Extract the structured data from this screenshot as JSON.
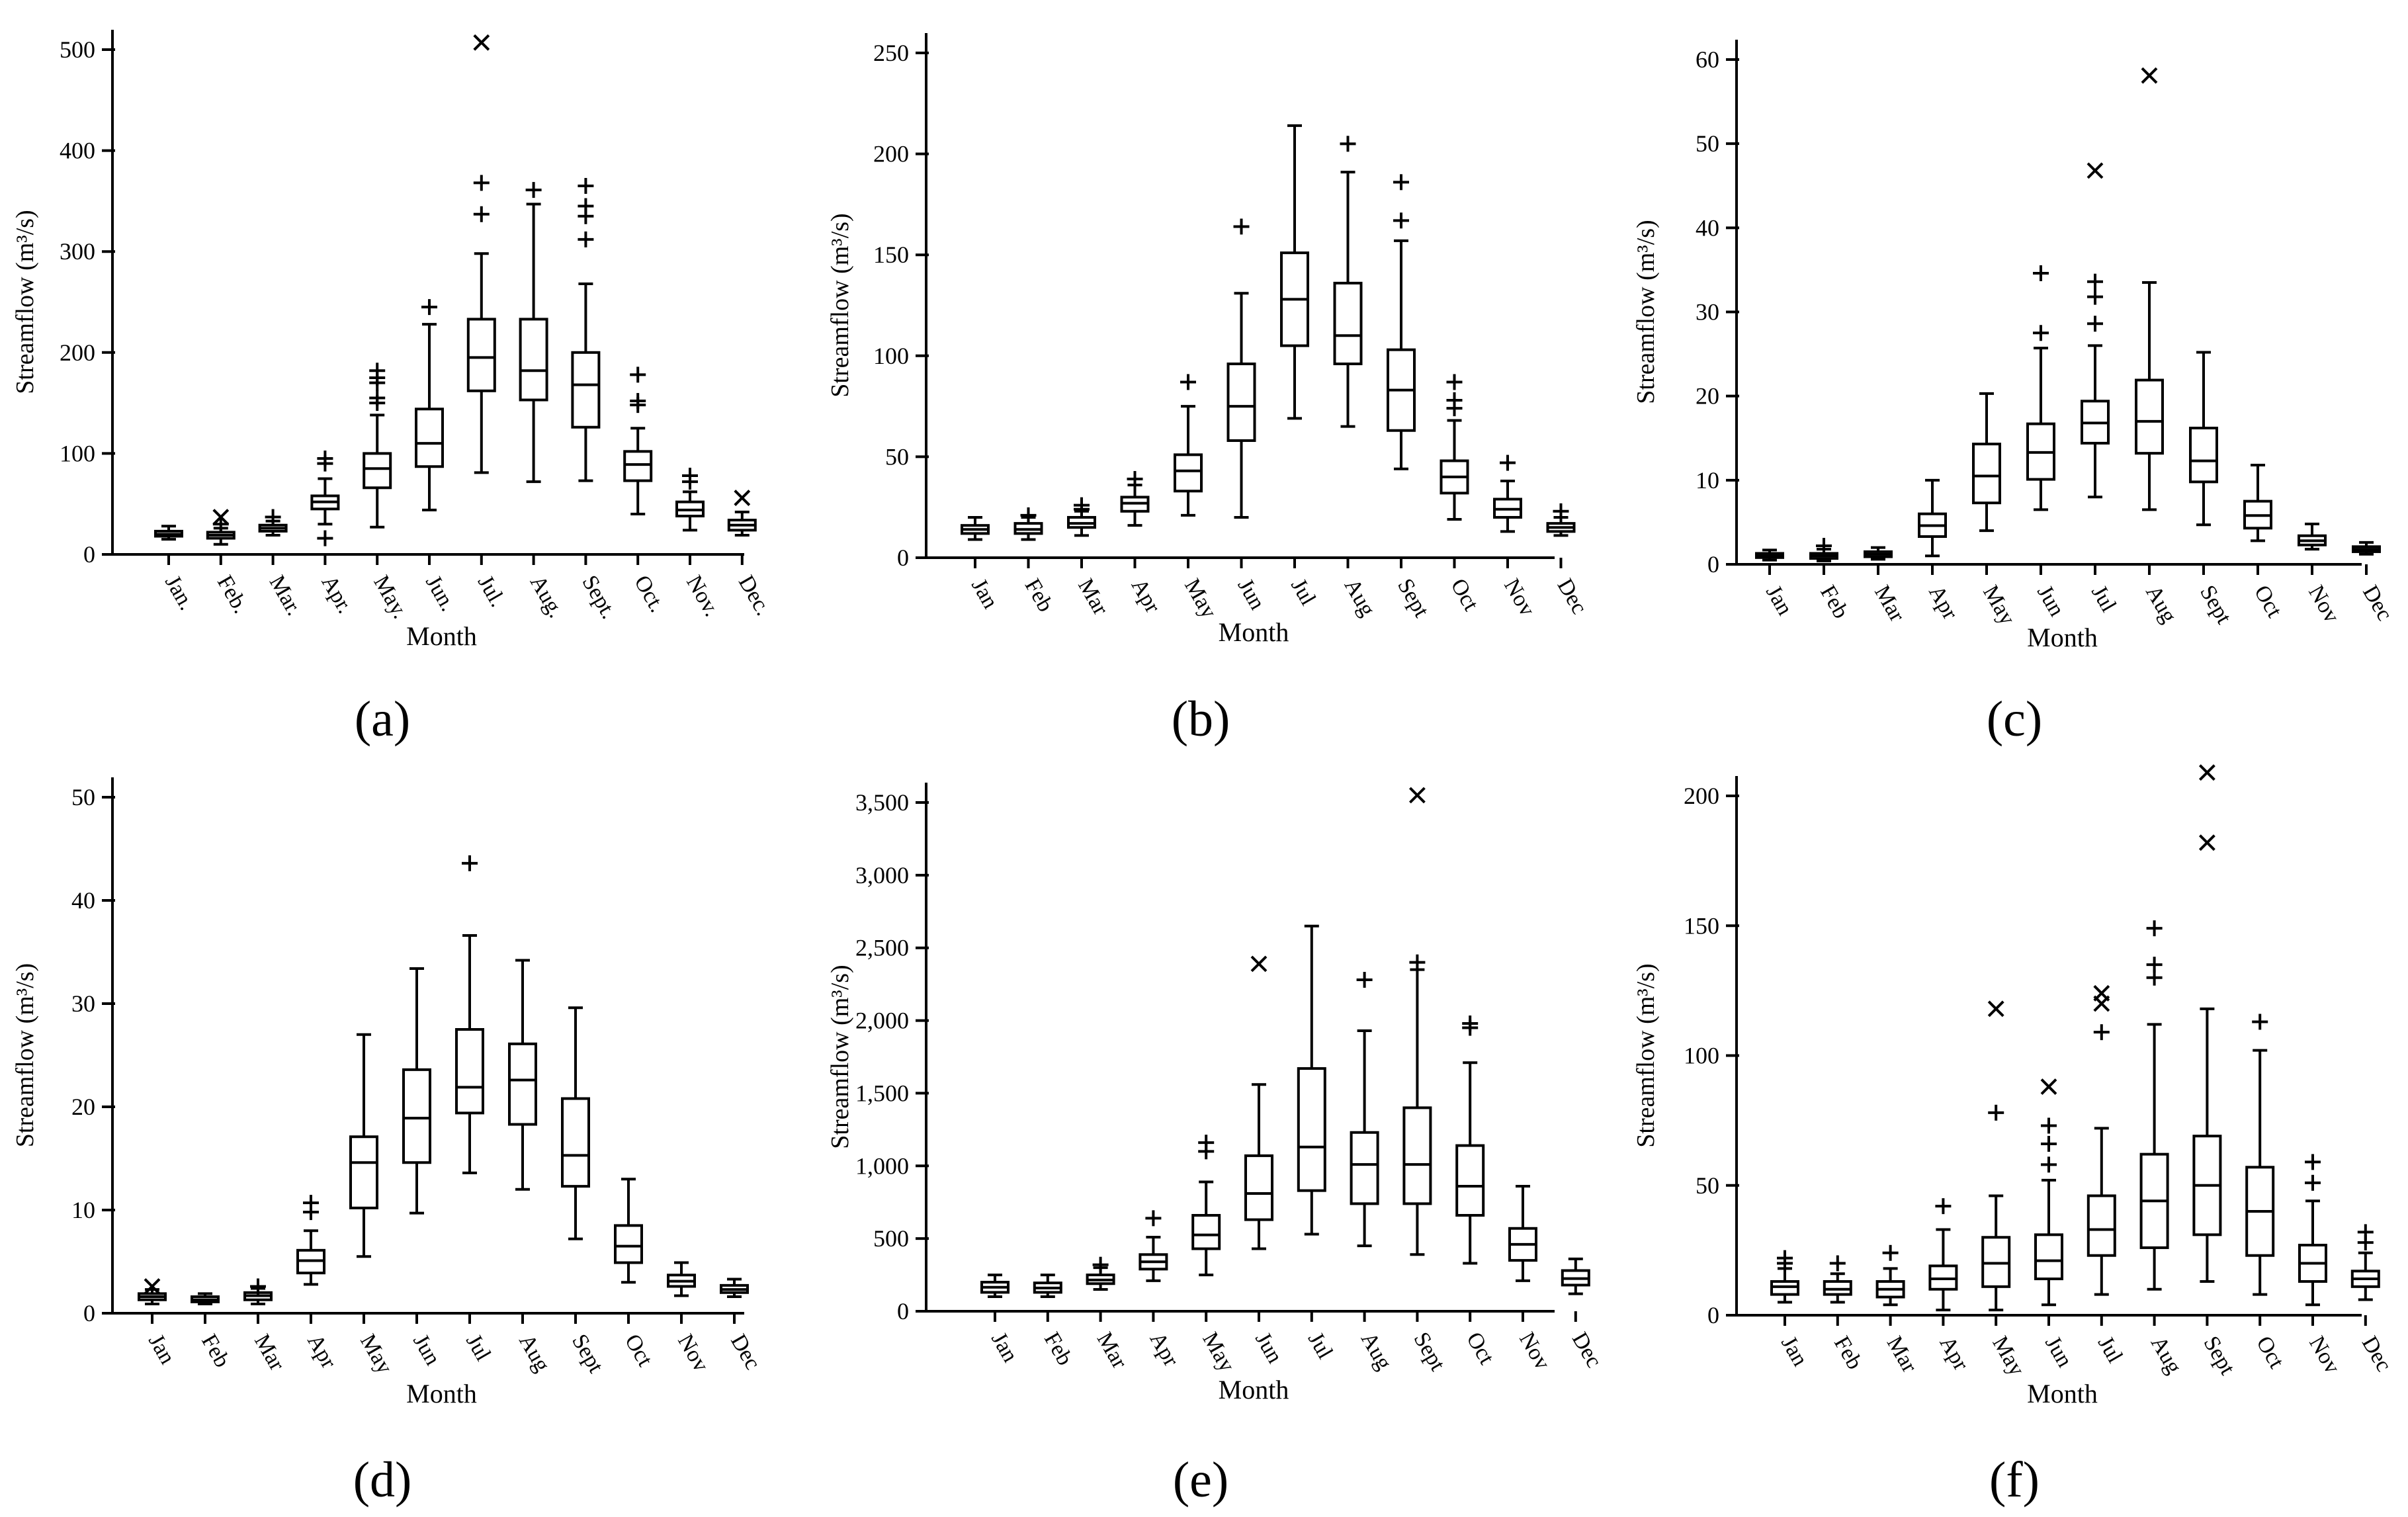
{
  "figure": {
    "panels": [
      "(a)",
      "(b)",
      "(c)",
      "(d)",
      "(e)",
      "(f)"
    ]
  },
  "chart_data": [
    {
      "id": "a",
      "type": "box",
      "panel_label": "(a)",
      "xlabel": "Month",
      "ylabel": "Streamflow (m³/s)",
      "ylim": [
        0,
        500
      ],
      "yticks": [
        0,
        100,
        200,
        300,
        400,
        500
      ],
      "ytick_labels": [
        "0",
        "100",
        "200",
        "300",
        "400",
        "500"
      ],
      "categories": [
        "Jan.",
        "Feb.",
        "Mar.",
        "Apr.",
        "May.",
        "Jun.",
        "Jul.",
        "Aug.",
        "Sept.",
        "Oct.",
        "Nov.",
        "Dec."
      ],
      "boxes": [
        {
          "min": 15,
          "q1": 18,
          "median": 20,
          "q3": 23,
          "max": 28,
          "outliers": [],
          "extremes": []
        },
        {
          "min": 10,
          "q1": 16,
          "median": 19,
          "q3": 22,
          "max": 26,
          "outliers": [
            30
          ],
          "extremes": [
            37
          ]
        },
        {
          "min": 19,
          "q1": 23,
          "median": 26,
          "q3": 29,
          "max": 33,
          "outliers": [
            37
          ],
          "extremes": []
        },
        {
          "min": 30,
          "q1": 45,
          "median": 52,
          "q3": 58,
          "max": 75,
          "outliers": [
            90,
            95,
            16
          ],
          "extremes": []
        },
        {
          "min": 27,
          "q1": 66,
          "median": 85,
          "q3": 100,
          "max": 138,
          "outliers": [
            150,
            155,
            170,
            175,
            182
          ],
          "extremes": []
        },
        {
          "min": 44,
          "q1": 87,
          "median": 110,
          "q3": 144,
          "max": 228,
          "outliers": [
            245
          ],
          "extremes": []
        },
        {
          "min": 81,
          "q1": 162,
          "median": 195,
          "q3": 233,
          "max": 298,
          "outliers": [
            337,
            368
          ],
          "extremes": [
            507
          ]
        },
        {
          "min": 72,
          "q1": 153,
          "median": 182,
          "q3": 233,
          "max": 347,
          "outliers": [
            361
          ],
          "extremes": []
        },
        {
          "min": 73,
          "q1": 126,
          "median": 168,
          "q3": 200,
          "max": 268,
          "outliers": [
            312,
            335,
            345,
            365
          ],
          "extremes": []
        },
        {
          "min": 40,
          "q1": 73,
          "median": 89,
          "q3": 102,
          "max": 125,
          "outliers": [
            148,
            152,
            178
          ],
          "extremes": []
        },
        {
          "min": 24,
          "q1": 38,
          "median": 44,
          "q3": 52,
          "max": 62,
          "outliers": [
            72,
            78
          ],
          "extremes": []
        },
        {
          "min": 19,
          "q1": 24,
          "median": 29,
          "q3": 34,
          "max": 42,
          "outliers": [],
          "extremes": [
            56
          ]
        }
      ]
    },
    {
      "id": "b",
      "type": "box",
      "panel_label": "(b)",
      "xlabel": "Month",
      "ylabel": "Streamflow (m³/s)",
      "ylim": [
        0,
        250
      ],
      "yticks": [
        0,
        50,
        100,
        150,
        200,
        250
      ],
      "ytick_labels": [
        "0",
        "50",
        "100",
        "150",
        "200",
        "250"
      ],
      "categories": [
        "Jan",
        "Feb",
        "Mar",
        "Apr",
        "May",
        "Jun",
        "Jul",
        "Aug",
        "Sept",
        "Oct",
        "Nov",
        "Dec"
      ],
      "boxes": [
        {
          "min": 9,
          "q1": 12,
          "median": 14,
          "q3": 16,
          "max": 20,
          "outliers": [],
          "extremes": []
        },
        {
          "min": 9,
          "q1": 12,
          "median": 14,
          "q3": 17,
          "max": 20,
          "outliers": [
            21
          ],
          "extremes": []
        },
        {
          "min": 11,
          "q1": 15,
          "median": 17,
          "q3": 20,
          "max": 23,
          "outliers": [
            24,
            26
          ],
          "extremes": []
        },
        {
          "min": 16,
          "q1": 23,
          "median": 27,
          "q3": 30,
          "max": 36,
          "outliers": [
            39
          ],
          "extremes": []
        },
        {
          "min": 21,
          "q1": 33,
          "median": 43,
          "q3": 51,
          "max": 75,
          "outliers": [
            87
          ],
          "extremes": []
        },
        {
          "min": 20,
          "q1": 58,
          "median": 75,
          "q3": 96,
          "max": 131,
          "outliers": [
            164
          ],
          "extremes": []
        },
        {
          "min": 69,
          "q1": 105,
          "median": 128,
          "q3": 151,
          "max": 214,
          "outliers": [],
          "extremes": []
        },
        {
          "min": 65,
          "q1": 96,
          "median": 110,
          "q3": 136,
          "max": 191,
          "outliers": [
            205
          ],
          "extremes": []
        },
        {
          "min": 44,
          "q1": 63,
          "median": 83,
          "q3": 103,
          "max": 157,
          "outliers": [
            167,
            186
          ],
          "extremes": []
        },
        {
          "min": 19,
          "q1": 32,
          "median": 40,
          "q3": 48,
          "max": 68,
          "outliers": [
            74,
            78,
            87
          ],
          "extremes": []
        },
        {
          "min": 13,
          "q1": 20,
          "median": 24,
          "q3": 29,
          "max": 38,
          "outliers": [
            47
          ],
          "extremes": []
        },
        {
          "min": 11,
          "q1": 13,
          "median": 15,
          "q3": 17,
          "max": 20,
          "outliers": [
            23
          ],
          "extremes": []
        }
      ]
    },
    {
      "id": "c",
      "type": "box",
      "panel_label": "(c)",
      "xlabel": "Month",
      "ylabel": "Streamflow (m³/s)",
      "ylim": [
        0,
        60
      ],
      "yticks": [
        0,
        10,
        20,
        30,
        40,
        50,
        60
      ],
      "ytick_labels": [
        "0",
        "10",
        "20",
        "30",
        "40",
        "50",
        "60"
      ],
      "categories": [
        "Jan",
        "Feb",
        "Mar",
        "Apr",
        "May",
        "Jun",
        "Jul",
        "Aug",
        "Sept",
        "Oct",
        "Nov",
        "Dec"
      ],
      "boxes": [
        {
          "min": 0.5,
          "q1": 0.8,
          "median": 1.0,
          "q3": 1.3,
          "max": 1.7,
          "outliers": [],
          "extremes": []
        },
        {
          "min": 0.4,
          "q1": 0.7,
          "median": 1.0,
          "q3": 1.3,
          "max": 1.8,
          "outliers": [
            2.2
          ],
          "extremes": []
        },
        {
          "min": 0.6,
          "q1": 0.9,
          "median": 1.2,
          "q3": 1.5,
          "max": 2.0,
          "outliers": [],
          "extremes": []
        },
        {
          "min": 1.0,
          "q1": 3.3,
          "median": 4.6,
          "q3": 6.0,
          "max": 10.0,
          "outliers": [],
          "extremes": []
        },
        {
          "min": 4.0,
          "q1": 7.3,
          "median": 10.5,
          "q3": 14.3,
          "max": 20.3,
          "outliers": [],
          "extremes": []
        },
        {
          "min": 6.5,
          "q1": 10.1,
          "median": 13.3,
          "q3": 16.7,
          "max": 25.7,
          "outliers": [
            27.5,
            34.6
          ],
          "extremes": []
        },
        {
          "min": 8.0,
          "q1": 14.4,
          "median": 16.8,
          "q3": 19.4,
          "max": 26.0,
          "outliers": [
            28.6,
            31.8,
            33.6
          ],
          "extremes": [
            46.8
          ]
        },
        {
          "min": 6.5,
          "q1": 13.2,
          "median": 17.0,
          "q3": 21.9,
          "max": 33.5,
          "outliers": [],
          "extremes": [
            58.1
          ]
        },
        {
          "min": 4.7,
          "q1": 9.8,
          "median": 12.3,
          "q3": 16.2,
          "max": 25.2,
          "outliers": [],
          "extremes": []
        },
        {
          "min": 2.8,
          "q1": 4.3,
          "median": 5.8,
          "q3": 7.5,
          "max": 11.8,
          "outliers": [],
          "extremes": []
        },
        {
          "min": 1.8,
          "q1": 2.3,
          "median": 2.8,
          "q3": 3.4,
          "max": 4.8,
          "outliers": [],
          "extremes": []
        },
        {
          "min": 1.2,
          "q1": 1.5,
          "median": 1.8,
          "q3": 2.1,
          "max": 2.6,
          "outliers": [],
          "extremes": []
        }
      ]
    },
    {
      "id": "d",
      "type": "box",
      "panel_label": "(d)",
      "xlabel": "Month",
      "ylabel": "Streamflow (m³/s)",
      "ylim": [
        0,
        50
      ],
      "yticks": [
        0,
        10,
        20,
        30,
        40,
        50
      ],
      "ytick_labels": [
        "0",
        "10",
        "20",
        "30",
        "40",
        "50"
      ],
      "categories": [
        "Jan",
        "Feb",
        "Mar",
        "Apr",
        "May",
        "Jun",
        "Jul",
        "Aug",
        "Sept",
        "Oct",
        "Nov",
        "Dec"
      ],
      "boxes": [
        {
          "min": 0.9,
          "q1": 1.3,
          "median": 1.6,
          "q3": 1.9,
          "max": 2.3,
          "outliers": [],
          "extremes": [
            2.6
          ]
        },
        {
          "min": 0.9,
          "q1": 1.1,
          "median": 1.3,
          "q3": 1.6,
          "max": 1.9,
          "outliers": [],
          "extremes": []
        },
        {
          "min": 0.9,
          "q1": 1.3,
          "median": 1.7,
          "q3": 2.0,
          "max": 2.4,
          "outliers": [
            2.6
          ],
          "extremes": []
        },
        {
          "min": 2.8,
          "q1": 3.9,
          "median": 5.1,
          "q3": 6.1,
          "max": 8.0,
          "outliers": [
            9.8,
            10.7
          ],
          "extremes": []
        },
        {
          "min": 5.5,
          "q1": 10.2,
          "median": 14.6,
          "q3": 17.1,
          "max": 27.0,
          "outliers": [],
          "extremes": []
        },
        {
          "min": 9.7,
          "q1": 14.6,
          "median": 18.9,
          "q3": 23.6,
          "max": 33.4,
          "outliers": [],
          "extremes": []
        },
        {
          "min": 13.6,
          "q1": 19.4,
          "median": 21.9,
          "q3": 27.5,
          "max": 36.6,
          "outliers": [
            43.6
          ],
          "extremes": []
        },
        {
          "min": 12.0,
          "q1": 18.3,
          "median": 22.6,
          "q3": 26.1,
          "max": 34.2,
          "outliers": [],
          "extremes": []
        },
        {
          "min": 7.2,
          "q1": 12.3,
          "median": 15.3,
          "q3": 20.8,
          "max": 29.6,
          "outliers": [],
          "extremes": []
        },
        {
          "min": 3.0,
          "q1": 4.9,
          "median": 6.5,
          "q3": 8.5,
          "max": 13.0,
          "outliers": [],
          "extremes": []
        },
        {
          "min": 1.7,
          "q1": 2.6,
          "median": 3.1,
          "q3": 3.7,
          "max": 4.9,
          "outliers": [],
          "extremes": []
        },
        {
          "min": 1.6,
          "q1": 2.0,
          "median": 2.3,
          "q3": 2.7,
          "max": 3.3,
          "outliers": [],
          "extremes": []
        }
      ]
    },
    {
      "id": "e",
      "type": "box",
      "panel_label": "(e)",
      "xlabel": "Month",
      "ylabel": "Streamflow (m³/s)",
      "ylim": [
        0,
        3500
      ],
      "yticks": [
        0,
        500,
        1000,
        1500,
        2000,
        2500,
        3000,
        3500
      ],
      "ytick_labels": [
        "0",
        "500",
        "1,000",
        "1,500",
        "2,000",
        "2,500",
        "3,000",
        "3,500"
      ],
      "categories": [
        "Jan",
        "Feb",
        "Mar",
        "Apr",
        "May",
        "Jun",
        "Jul",
        "Aug",
        "Sept",
        "Oct",
        "Nov",
        "Dec"
      ],
      "boxes": [
        {
          "min": 100,
          "q1": 130,
          "median": 165,
          "q3": 200,
          "max": 250,
          "outliers": [],
          "extremes": []
        },
        {
          "min": 100,
          "q1": 130,
          "median": 160,
          "q3": 195,
          "max": 250,
          "outliers": [],
          "extremes": []
        },
        {
          "min": 150,
          "q1": 190,
          "median": 215,
          "q3": 250,
          "max": 300,
          "outliers": [
            320
          ],
          "extremes": []
        },
        {
          "min": 210,
          "q1": 290,
          "median": 340,
          "q3": 390,
          "max": 510,
          "outliers": [
            640
          ],
          "extremes": []
        },
        {
          "min": 250,
          "q1": 430,
          "median": 525,
          "q3": 660,
          "max": 890,
          "outliers": [
            1100,
            1160
          ],
          "extremes": []
        },
        {
          "min": 430,
          "q1": 630,
          "median": 810,
          "q3": 1070,
          "max": 1560,
          "outliers": [],
          "extremes": [
            2390
          ]
        },
        {
          "min": 530,
          "q1": 830,
          "median": 1130,
          "q3": 1670,
          "max": 2650,
          "outliers": [],
          "extremes": []
        },
        {
          "min": 450,
          "q1": 740,
          "median": 1010,
          "q3": 1230,
          "max": 1930,
          "outliers": [
            2280
          ],
          "extremes": []
        },
        {
          "min": 390,
          "q1": 740,
          "median": 1010,
          "q3": 1400,
          "max": 2350,
          "outliers": [
            2400
          ],
          "extremes": [
            3550
          ]
        },
        {
          "min": 330,
          "q1": 660,
          "median": 860,
          "q3": 1140,
          "max": 1710,
          "outliers": [
            1950,
            1980
          ],
          "extremes": []
        },
        {
          "min": 210,
          "q1": 350,
          "median": 460,
          "q3": 570,
          "max": 860,
          "outliers": [],
          "extremes": []
        },
        {
          "min": 120,
          "q1": 180,
          "median": 225,
          "q3": 280,
          "max": 360,
          "outliers": [],
          "extremes": []
        }
      ]
    },
    {
      "id": "f",
      "type": "box",
      "panel_label": "(f)",
      "xlabel": "Month",
      "ylabel": "Streamflow (m³/s)",
      "ylim": [
        0,
        200
      ],
      "yticks": [
        0,
        50,
        100,
        150,
        200
      ],
      "ytick_labels": [
        "0",
        "50",
        "100",
        "150",
        "200"
      ],
      "categories": [
        "Jan",
        "Feb",
        "Mar",
        "Apr",
        "May",
        "Jun",
        "Jul",
        "Aug",
        "Sept",
        "Oct",
        "Nov",
        "Dec"
      ],
      "boxes": [
        {
          "min": 5,
          "q1": 8,
          "median": 11,
          "q3": 13,
          "max": 18,
          "outliers": [
            20,
            22
          ],
          "extremes": []
        },
        {
          "min": 5,
          "q1": 8,
          "median": 10,
          "q3": 13,
          "max": 16,
          "outliers": [
            20
          ],
          "extremes": []
        },
        {
          "min": 4,
          "q1": 7,
          "median": 10,
          "q3": 13,
          "max": 18,
          "outliers": [
            24
          ],
          "extremes": []
        },
        {
          "min": 2,
          "q1": 10,
          "median": 14,
          "q3": 19,
          "max": 33,
          "outliers": [
            42
          ],
          "extremes": []
        },
        {
          "min": 2,
          "q1": 11,
          "median": 20,
          "q3": 30,
          "max": 46,
          "outliers": [
            78
          ],
          "extremes": [
            118
          ]
        },
        {
          "min": 4,
          "q1": 14,
          "median": 21,
          "q3": 31,
          "max": 52,
          "outliers": [
            58,
            66,
            73
          ],
          "extremes": [
            88
          ]
        },
        {
          "min": 8,
          "q1": 23,
          "median": 33,
          "q3": 46,
          "max": 72,
          "outliers": [
            109
          ],
          "extremes": [
            120,
            124
          ]
        },
        {
          "min": 10,
          "q1": 26,
          "median": 44,
          "q3": 62,
          "max": 112,
          "outliers": [
            130,
            135,
            149
          ],
          "extremes": []
        },
        {
          "min": 13,
          "q1": 31,
          "median": 50,
          "q3": 69,
          "max": 118,
          "outliers": [],
          "extremes": [
            182,
            209
          ]
        },
        {
          "min": 8,
          "q1": 23,
          "median": 40,
          "q3": 57,
          "max": 102,
          "outliers": [
            113
          ],
          "extremes": []
        },
        {
          "min": 4,
          "q1": 13,
          "median": 20,
          "q3": 27,
          "max": 44,
          "outliers": [
            51,
            59
          ],
          "extremes": []
        },
        {
          "min": 6,
          "q1": 11,
          "median": 14,
          "q3": 17,
          "max": 24,
          "outliers": [
            28,
            32
          ],
          "extremes": []
        }
      ]
    }
  ]
}
